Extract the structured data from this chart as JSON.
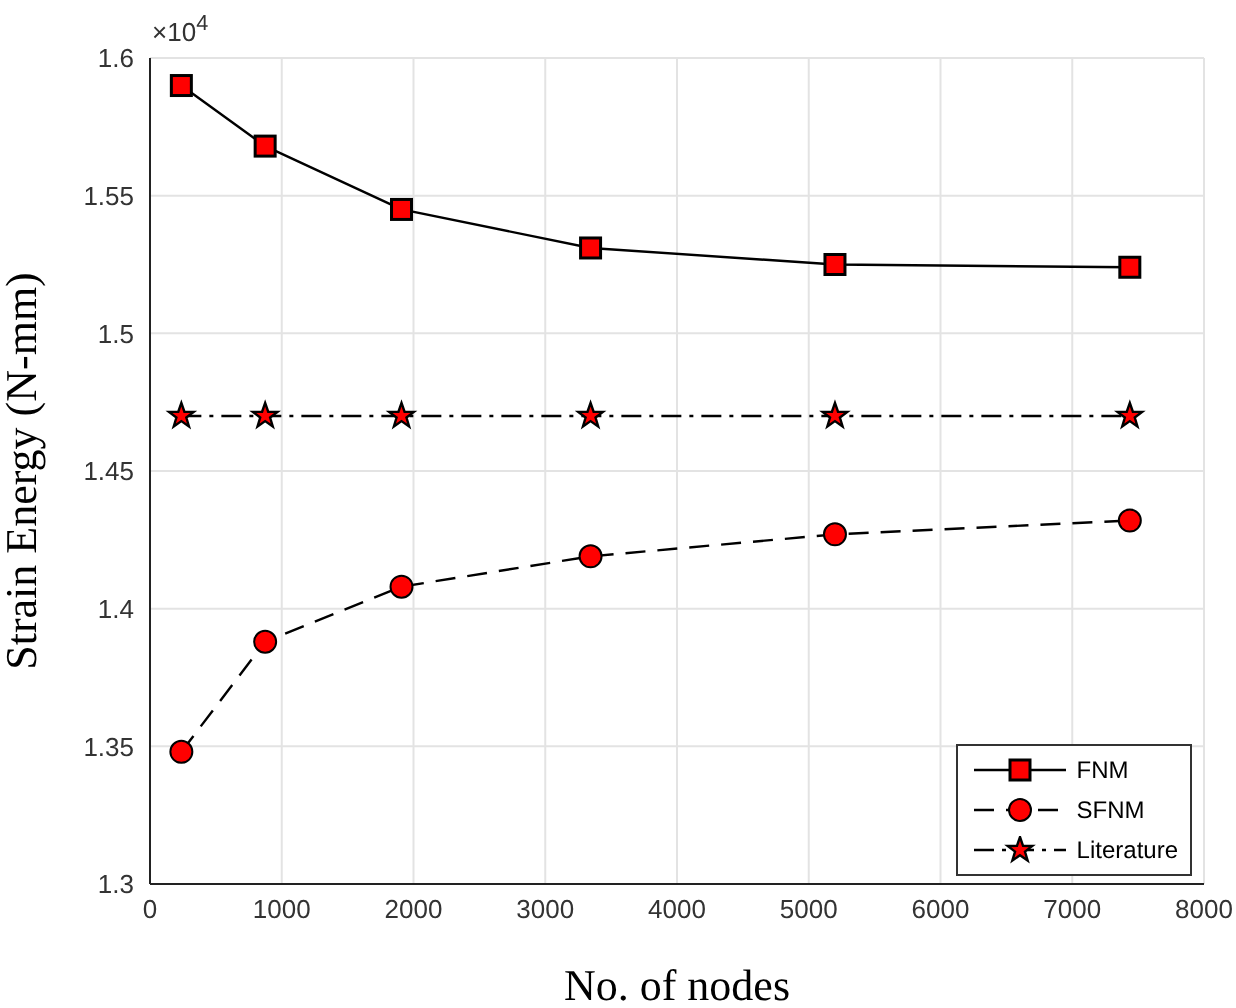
{
  "chart_data": {
    "type": "line",
    "xlabel": "No. of nodes",
    "ylabel": "Strain Energy (N-mm)",
    "annotations": [
      "×10$^{4}$"
    ],
    "x": [
      238,
      874,
      1909,
      3344,
      5199,
      7437
    ],
    "series": [
      {
        "name": "FNM",
        "color": "#ff0000",
        "marker": "square",
        "line_style": "solid",
        "values": [
          1.59,
          1.568,
          1.545,
          1.531,
          1.525,
          1.524
        ]
      },
      {
        "name": "SFNM",
        "color": "#ff0000",
        "marker": "circle",
        "line_style": "dashed",
        "values": [
          1.348,
          1.388,
          1.408,
          1.419,
          1.427,
          1.432
        ]
      },
      {
        "name": "Literature",
        "color": "#ff0000",
        "marker": "star",
        "line_style": "dashdot",
        "values": [
          1.47,
          1.47,
          1.47,
          1.47,
          1.47,
          1.47
        ]
      }
    ],
    "xlim": [
      0,
      8000
    ],
    "xticks": [
      0,
      1000,
      2000,
      3000,
      4000,
      5000,
      6000,
      7000,
      8000
    ],
    "ylim": [
      1.3,
      1.6
    ],
    "yticks": [
      1.3,
      1.35,
      1.4,
      1.45,
      1.5,
      1.55,
      1.6
    ],
    "grid": true,
    "legend": "bottom right"
  }
}
